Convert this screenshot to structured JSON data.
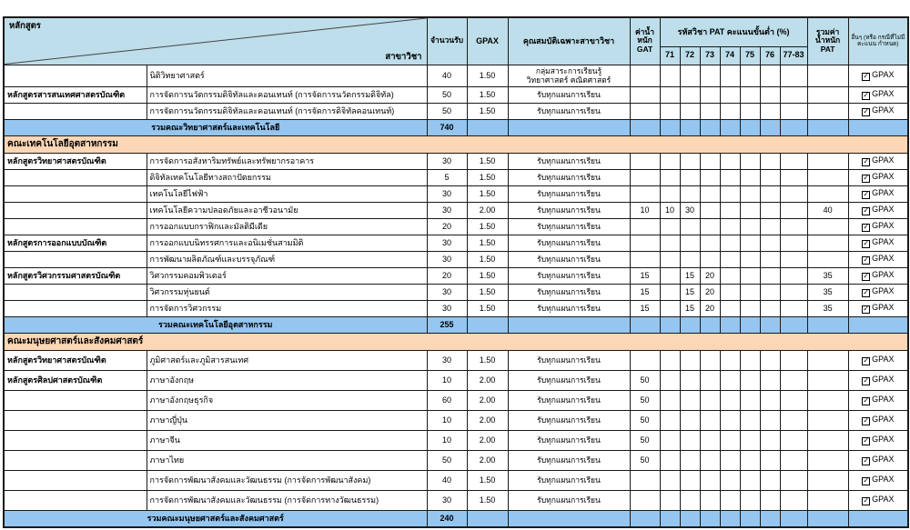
{
  "colors": {
    "header_bg": "#bddeea",
    "summary_bg": "#94c6f0",
    "section_bg": "#fcd7b6",
    "border": "#1a1a1a"
  },
  "labels": {
    "gpax_check": "GPAX"
  },
  "header": {
    "program": "หลักสูตร",
    "field": "สาขาวิชา",
    "seats": "จำนวนรับ",
    "gpax": "GPAX",
    "qualification": "คุณสมบัติเฉพาะสาขาวิชา",
    "gat": "ค่าน้ำหนัก GAT",
    "pat_group": "รหัสวิชา PAT คะแนนขั้นต่ำ (%)",
    "pat_codes": [
      "71",
      "72",
      "73",
      "74",
      "75",
      "76",
      "77-83"
    ],
    "pat_total": "รวมค่า น้ำหนัก PAT",
    "other": "อื่นๆ (หรือ กรณีที่ไม่มี คะแนน กำหนด)"
  },
  "rows": [
    {
      "type": "data",
      "program": "",
      "field": "นิติวิทยาศาสตร์",
      "seats": "40",
      "gpax": "1.50",
      "qualification": "กลุ่มสาระการเรียนรู้\nวิทยาศาสตร์ คณิตศาสตร์",
      "gat": "",
      "pat": {},
      "pat_total": "",
      "gpax_check": true
    },
    {
      "type": "data",
      "program": "หลักสูตรสารสนเทศศาสตรบัณฑิต",
      "field": "การจัดการนวัตกรรมดิจิทัลและคอนเทนท์ (การจัดการนวัตกรรมดิจิทัล)",
      "seats": "50",
      "gpax": "1.50",
      "qualification": "รับทุกแผนการเรียน",
      "gat": "",
      "pat": {},
      "pat_total": "",
      "gpax_check": true
    },
    {
      "type": "data",
      "program": "",
      "field": "การจัดการนวัตกรรมดิจิทัลและคอนเทนท์ (การจัดการดิจิทัลคอนเทนท์)",
      "seats": "50",
      "gpax": "1.50",
      "qualification": "รับทุกแผนการเรียน",
      "gat": "",
      "pat": {},
      "pat_total": "",
      "gpax_check": true
    },
    {
      "type": "summary",
      "label": "รวมคณะวิทยาศาสตร์และเทคโนโลยี",
      "seats": "740"
    },
    {
      "type": "section",
      "label": "คณะเทคโนโลยีอุตสาหกรรม"
    },
    {
      "type": "data",
      "program": "หลักสูตรวิทยาศาสตรบัณฑิต",
      "field": "การจัดการอสังหาริมทรัพย์และทรัพยากรอาคาร",
      "seats": "30",
      "gpax": "1.50",
      "qualification": "รับทุกแผนการเรียน",
      "gat": "",
      "pat": {},
      "pat_total": "",
      "gpax_check": true
    },
    {
      "type": "data",
      "program": "",
      "field": "ดิจิทัลเทคโนโลยีทางสถาปัตยกรรม",
      "seats": "5",
      "gpax": "1.50",
      "qualification": "รับทุกแผนการเรียน",
      "gat": "",
      "pat": {},
      "pat_total": "",
      "gpax_check": true
    },
    {
      "type": "data",
      "program": "",
      "field": "เทคโนโลยีไฟฟ้า",
      "seats": "30",
      "gpax": "1.50",
      "qualification": "รับทุกแผนการเรียน",
      "gat": "",
      "pat": {},
      "pat_total": "",
      "gpax_check": true
    },
    {
      "type": "data",
      "program": "",
      "field": "เทคโนโลยีความปลอดภัยและอาชีวอนามัย",
      "seats": "30",
      "gpax": "2.00",
      "qualification": "รับทุกแผนการเรียน",
      "gat": "10",
      "pat": {
        "71": "10",
        "72": "30"
      },
      "pat_total": "40",
      "gpax_check": true
    },
    {
      "type": "data",
      "program": "",
      "field": "การออกแบบกราฟิกและมัลติมีเดีย",
      "seats": "20",
      "gpax": "1.50",
      "qualification": "รับทุกแผนการเรียน",
      "gat": "",
      "pat": {},
      "pat_total": "",
      "gpax_check": true
    },
    {
      "type": "data",
      "program": "หลักสูตรการออกแบบบัณฑิต",
      "field": "การออกแบบนิทรรศการและอนิเมชั่นสามมิติ",
      "seats": "30",
      "gpax": "1.50",
      "qualification": "รับทุกแผนการเรียน",
      "gat": "",
      "pat": {},
      "pat_total": "",
      "gpax_check": true
    },
    {
      "type": "data",
      "program": "",
      "field": "การพัฒนาผลิตภัณฑ์และบรรจุภัณฑ์",
      "seats": "30",
      "gpax": "1.50",
      "qualification": "รับทุกแผนการเรียน",
      "gat": "",
      "pat": {},
      "pat_total": "",
      "gpax_check": true
    },
    {
      "type": "data",
      "program": "หลักสูตรวิศวกรรมศาสตรบัณฑิต",
      "field": "วิศวกรรมคอมพิวเตอร์",
      "seats": "20",
      "gpax": "1.50",
      "qualification": "รับทุกแผนการเรียน",
      "gat": "15",
      "pat": {
        "72": "15",
        "73": "20"
      },
      "pat_total": "35",
      "gpax_check": true
    },
    {
      "type": "data",
      "program": "",
      "field": "วิศวกรรมหุ่นยนต์",
      "seats": "30",
      "gpax": "1.50",
      "qualification": "รับทุกแผนการเรียน",
      "gat": "15",
      "pat": {
        "72": "15",
        "73": "20"
      },
      "pat_total": "35",
      "gpax_check": true
    },
    {
      "type": "data",
      "program": "",
      "field": "การจัดการวิศวกรรม",
      "seats": "30",
      "gpax": "1.50",
      "qualification": "รับทุกแผนการเรียน",
      "gat": "15",
      "pat": {
        "72": "15",
        "73": "20"
      },
      "pat_total": "35",
      "gpax_check": true
    },
    {
      "type": "summary",
      "label": "รวมคณะเทคโนโลยีอุตสาหกรรม",
      "seats": "255"
    },
    {
      "type": "section",
      "label": "คณะมนุษยศาสตร์และสังคมศาสตร์"
    },
    {
      "type": "data",
      "program": "หลักสูตรวิทยาศาสตรบัณฑิต",
      "field": "ภูมิศาสตร์และภูมิสารสนเทศ",
      "seats": "30",
      "gpax": "1.50",
      "qualification": "รับทุกแผนการเรียน",
      "gat": "",
      "pat": {},
      "pat_total": "",
      "gpax_check": true
    },
    {
      "type": "data",
      "program": "หลักสูตรศิลปศาสตรบัณฑิต",
      "field": "ภาษาอังกฤษ",
      "seats": "10",
      "gpax": "2.00",
      "qualification": "รับทุกแผนการเรียน",
      "gat": "50",
      "pat": {},
      "pat_total": "",
      "gpax_check": true
    },
    {
      "type": "data",
      "program": "",
      "field": "ภาษาอังกฤษธุรกิจ",
      "seats": "60",
      "gpax": "2.00",
      "qualification": "รับทุกแผนการเรียน",
      "gat": "50",
      "pat": {},
      "pat_total": "",
      "gpax_check": true
    },
    {
      "type": "data",
      "program": "",
      "field": "ภาษาญี่ปุ่น",
      "seats": "10",
      "gpax": "2.00",
      "qualification": "รับทุกแผนการเรียน",
      "gat": "50",
      "pat": {},
      "pat_total": "",
      "gpax_check": true
    },
    {
      "type": "data",
      "program": "",
      "field": "ภาษาจีน",
      "seats": "10",
      "gpax": "2.00",
      "qualification": "รับทุกแผนการเรียน",
      "gat": "50",
      "pat": {},
      "pat_total": "",
      "gpax_check": true
    },
    {
      "type": "data",
      "program": "",
      "field": "ภาษาไทย",
      "seats": "50",
      "gpax": "2.00",
      "qualification": "รับทุกแผนการเรียน",
      "gat": "50",
      "pat": {},
      "pat_total": "",
      "gpax_check": true
    },
    {
      "type": "data",
      "program": "",
      "field": "การจัดการพัฒนาสังคมและวัฒนธรรม (การจัดการพัฒนาสังคม)",
      "seats": "40",
      "gpax": "1.50",
      "qualification": "รับทุกแผนการเรียน",
      "gat": "",
      "pat": {},
      "pat_total": "",
      "gpax_check": true
    },
    {
      "type": "data",
      "program": "",
      "field": "การจัดการพัฒนาสังคมและวัฒนธรรม (การจัดการทางวัฒนธรรม)",
      "seats": "30",
      "gpax": "1.50",
      "qualification": "รับทุกแผนการเรียน",
      "gat": "",
      "pat": {},
      "pat_total": "",
      "gpax_check": true
    },
    {
      "type": "summary",
      "label": "รวมคณะมนุษยศาสตร์และสังคมศาสตร์",
      "seats": "240"
    }
  ]
}
